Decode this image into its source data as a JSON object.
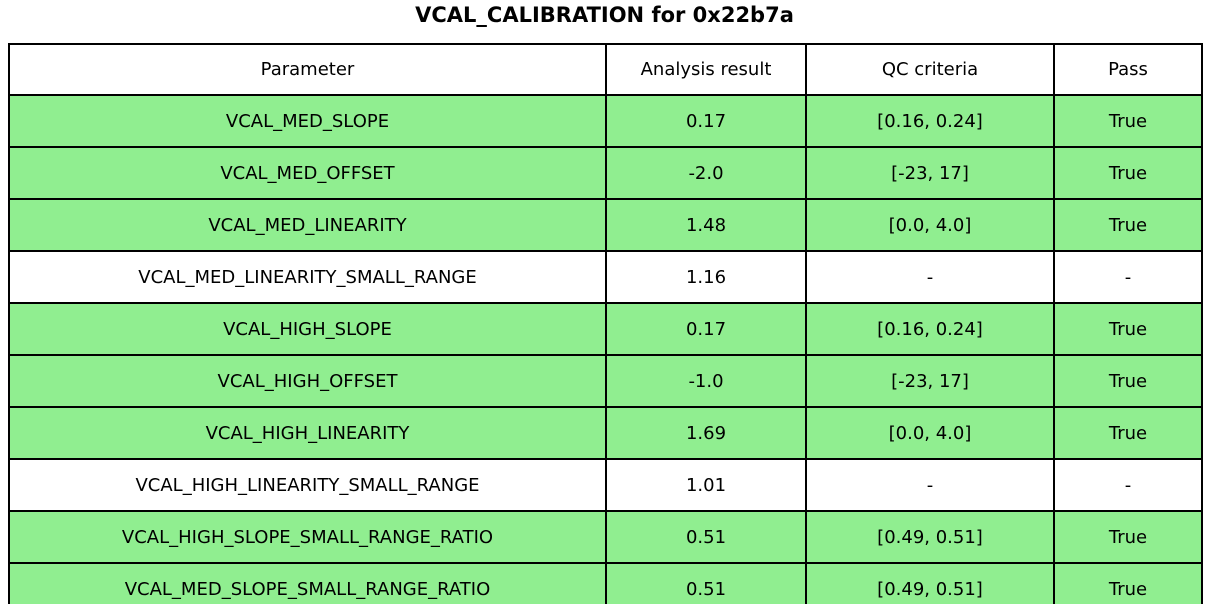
{
  "chart_data": {
    "type": "table",
    "title": "VCAL_CALIBRATION for 0x22b7a",
    "columns": [
      "Parameter",
      "Analysis result",
      "QC criteria",
      "Pass"
    ],
    "rows": [
      {
        "cells": [
          "VCAL_MED_SLOPE",
          "0.17",
          "[0.16, 0.24]",
          "True"
        ],
        "highlight": true
      },
      {
        "cells": [
          "VCAL_MED_OFFSET",
          "-2.0",
          "[-23, 17]",
          "True"
        ],
        "highlight": true
      },
      {
        "cells": [
          "VCAL_MED_LINEARITY",
          "1.48",
          "[0.0, 4.0]",
          "True"
        ],
        "highlight": true
      },
      {
        "cells": [
          "VCAL_MED_LINEARITY_SMALL_RANGE",
          "1.16",
          "-",
          "-"
        ],
        "highlight": false
      },
      {
        "cells": [
          "VCAL_HIGH_SLOPE",
          "0.17",
          "[0.16, 0.24]",
          "True"
        ],
        "highlight": true
      },
      {
        "cells": [
          "VCAL_HIGH_OFFSET",
          "-1.0",
          "[-23, 17]",
          "True"
        ],
        "highlight": true
      },
      {
        "cells": [
          "VCAL_HIGH_LINEARITY",
          "1.69",
          "[0.0, 4.0]",
          "True"
        ],
        "highlight": true
      },
      {
        "cells": [
          "VCAL_HIGH_LINEARITY_SMALL_RANGE",
          "1.01",
          "-",
          "-"
        ],
        "highlight": false
      },
      {
        "cells": [
          "VCAL_HIGH_SLOPE_SMALL_RANGE_RATIO",
          "0.51",
          "[0.49, 0.51]",
          "True"
        ],
        "highlight": true
      },
      {
        "cells": [
          "VCAL_MED_SLOPE_SMALL_RANGE_RATIO",
          "0.51",
          "[0.49, 0.51]",
          "True"
        ],
        "highlight": true
      }
    ],
    "colors": {
      "pass_row_bg": "#90ee90",
      "neutral_row_bg": "#ffffff",
      "border": "#000000",
      "text": "#000000"
    },
    "layout_hints": {
      "legend": "none",
      "grid": "full table grid lines"
    }
  }
}
